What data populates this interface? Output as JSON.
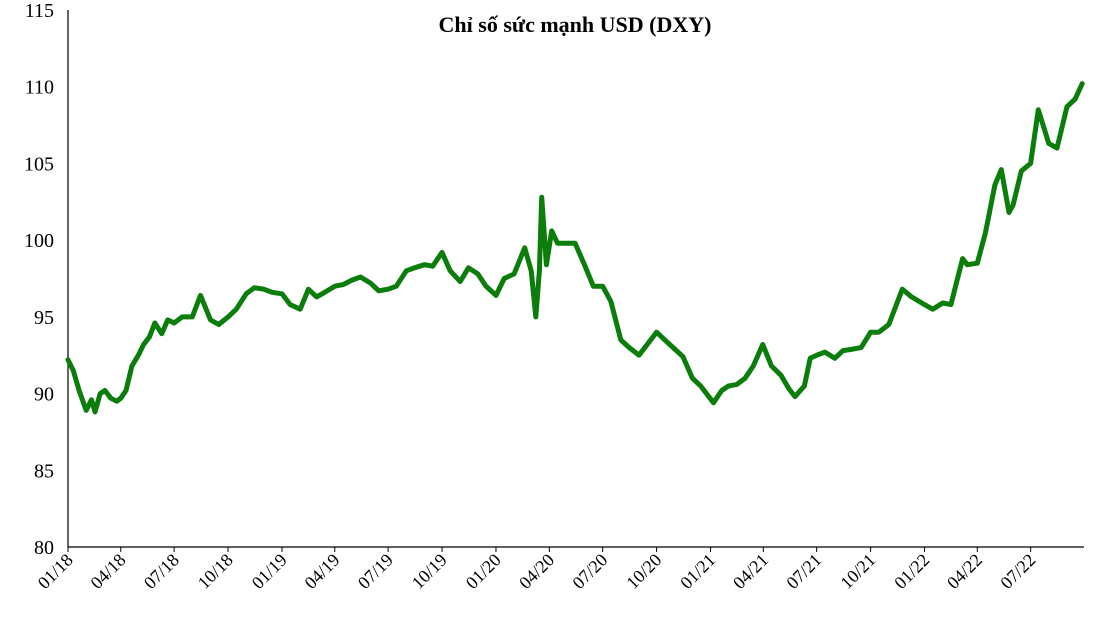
{
  "chart_data": {
    "type": "line",
    "title": "Chỉ số sức mạnh USD (DXY)",
    "xlabel": "",
    "ylabel": "",
    "ylim": [
      80,
      115
    ],
    "y_ticks": [
      "80",
      "85",
      "90",
      "95",
      "100",
      "105",
      "110",
      "115"
    ],
    "x_ticks": [
      "01/18",
      "04/18",
      "07/18",
      "10/18",
      "01/19",
      "04/19",
      "07/19",
      "10/19",
      "01/20",
      "04/20",
      "07/20",
      "10/20",
      "01/21",
      "04/21",
      "07/21",
      "10/21",
      "01/22",
      "04/22",
      "07/22"
    ],
    "xlim": [
      "2018-01-01",
      "2022-09-30"
    ],
    "grid": false,
    "legend": "none",
    "line_color": "#0a7d0a",
    "series": [
      {
        "x": [
          "2018-01-01",
          "2018-01-10",
          "2018-01-20",
          "2018-02-01",
          "2018-02-10",
          "2018-02-16",
          "2018-02-25",
          "2018-03-05",
          "2018-03-15",
          "2018-03-25",
          "2018-04-01",
          "2018-04-10",
          "2018-04-20",
          "2018-05-01",
          "2018-05-10",
          "2018-05-20",
          "2018-05-29",
          "2018-06-10",
          "2018-06-20",
          "2018-07-01",
          "2018-07-15",
          "2018-08-01",
          "2018-08-15",
          "2018-09-01",
          "2018-09-15",
          "2018-10-01",
          "2018-10-15",
          "2018-11-01",
          "2018-11-15",
          "2018-12-01",
          "2018-12-15",
          "2019-01-01",
          "2019-01-15",
          "2019-02-01",
          "2019-02-15",
          "2019-03-01",
          "2019-03-15",
          "2019-04-01",
          "2019-04-15",
          "2019-05-01",
          "2019-05-15",
          "2019-06-01",
          "2019-06-15",
          "2019-07-01",
          "2019-07-15",
          "2019-08-01",
          "2019-08-15",
          "2019-09-01",
          "2019-09-15",
          "2019-10-01",
          "2019-10-15",
          "2019-11-01",
          "2019-11-15",
          "2019-12-01",
          "2019-12-15",
          "2020-01-01",
          "2020-01-15",
          "2020-02-01",
          "2020-02-19",
          "2020-03-01",
          "2020-03-09",
          "2020-03-15",
          "2020-03-19",
          "2020-03-27",
          "2020-04-05",
          "2020-04-15",
          "2020-05-01",
          "2020-05-15",
          "2020-06-01",
          "2020-06-15",
          "2020-07-01",
          "2020-07-15",
          "2020-08-01",
          "2020-08-15",
          "2020-09-01",
          "2020-09-15",
          "2020-10-01",
          "2020-10-15",
          "2020-11-01",
          "2020-11-15",
          "2020-12-01",
          "2020-12-15",
          "2021-01-06",
          "2021-01-20",
          "2021-02-01",
          "2021-02-15",
          "2021-03-01",
          "2021-03-15",
          "2021-03-31",
          "2021-04-15",
          "2021-05-01",
          "2021-05-15",
          "2021-05-25",
          "2021-06-10",
          "2021-06-20",
          "2021-07-01",
          "2021-07-15",
          "2021-08-01",
          "2021-08-15",
          "2021-09-01",
          "2021-09-15",
          "2021-10-01",
          "2021-10-15",
          "2021-11-01",
          "2021-11-24",
          "2021-12-10",
          "2022-01-01",
          "2022-01-15",
          "2022-02-01",
          "2022-02-15",
          "2022-03-07",
          "2022-03-15",
          "2022-04-01",
          "2022-04-15",
          "2022-05-01",
          "2022-05-12",
          "2022-05-25",
          "2022-06-01",
          "2022-06-15",
          "2022-07-01",
          "2022-07-14",
          "2022-08-01",
          "2022-08-15",
          "2022-09-01",
          "2022-09-15",
          "2022-09-27"
        ],
        "y": [
          92.2,
          91.5,
          90.2,
          88.9,
          89.6,
          88.8,
          90.0,
          90.2,
          89.7,
          89.5,
          89.7,
          90.2,
          91.8,
          92.5,
          93.2,
          93.7,
          94.6,
          93.9,
          94.8,
          94.6,
          95.0,
          95.0,
          96.4,
          94.8,
          94.5,
          95.0,
          95.5,
          96.5,
          96.9,
          96.8,
          96.6,
          96.5,
          95.8,
          95.5,
          96.8,
          96.3,
          96.6,
          97.0,
          97.1,
          97.4,
          97.6,
          97.2,
          96.7,
          96.8,
          97.0,
          98.0,
          98.2,
          98.4,
          98.3,
          99.2,
          98.0,
          97.3,
          98.2,
          97.8,
          97.0,
          96.4,
          97.5,
          97.8,
          99.5,
          98.0,
          95.0,
          98.0,
          102.8,
          98.4,
          100.6,
          99.8,
          99.8,
          99.8,
          98.3,
          97.0,
          97.0,
          96.0,
          93.5,
          93.0,
          92.5,
          93.2,
          94.0,
          93.5,
          92.9,
          92.4,
          91.0,
          90.5,
          89.4,
          90.2,
          90.5,
          90.6,
          91.0,
          91.8,
          93.2,
          91.8,
          91.2,
          90.3,
          89.8,
          90.5,
          92.3,
          92.5,
          92.7,
          92.3,
          92.8,
          92.9,
          93.0,
          94.0,
          94.0,
          94.5,
          96.8,
          96.3,
          95.8,
          95.5,
          95.9,
          95.8,
          98.8,
          98.4,
          98.5,
          100.5,
          103.6,
          104.6,
          101.8,
          102.3,
          104.5,
          105.0,
          108.5,
          106.3,
          106.0,
          108.7,
          109.2,
          110.2
        ]
      }
    ]
  }
}
